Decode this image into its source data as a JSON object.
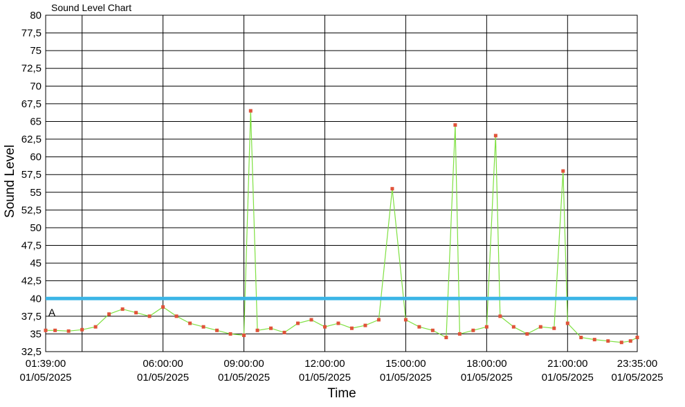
{
  "chart_data": {
    "type": "line",
    "title": "Sound Level Chart",
    "xlabel": "Time",
    "ylabel": "Sound Level",
    "ylim": [
      32.5,
      80
    ],
    "xlim": [
      "2025-05-01T01:39:00",
      "2025-05-01T23:35:00"
    ],
    "yticks": [
      "32,5",
      "35",
      "37,5",
      "40",
      "42,5",
      "45",
      "47,5",
      "50",
      "52,5",
      "55",
      "57,5",
      "60",
      "62,5",
      "65",
      "67,5",
      "70",
      "72,5",
      "75",
      "77,5",
      "80"
    ],
    "xticks": [
      {
        "time": "2025-05-01T01:39:00",
        "line1": "01:39:00",
        "line2": "01/05/2025"
      },
      {
        "time": "2025-05-01T06:00:00",
        "line1": "06:00:00",
        "line2": "01/05/2025"
      },
      {
        "time": "2025-05-01T09:00:00",
        "line1": "09:00:00",
        "line2": "01/05/2025"
      },
      {
        "time": "2025-05-01T12:00:00",
        "line1": "12:00:00",
        "line2": "01/05/2025"
      },
      {
        "time": "2025-05-01T15:00:00",
        "line1": "15:00:00",
        "line2": "01/05/2025"
      },
      {
        "time": "2025-05-01T18:00:00",
        "line1": "18:00:00",
        "line2": "01/05/2025"
      },
      {
        "time": "2025-05-01T21:00:00",
        "line1": "21:00:00",
        "line2": "01/05/2025"
      },
      {
        "time": "2025-05-01T23:35:00",
        "line1": "23:35:00",
        "line2": "01/05/2025"
      }
    ],
    "grid": true,
    "threshold": {
      "value": 40,
      "label": "A",
      "color": "#3bb5e6"
    },
    "colors": {
      "line": "#7ee040",
      "marker": "#e0533a"
    },
    "series": [
      {
        "x": [
          "2025-05-01T01:39:00",
          "2025-05-01T02:00:00",
          "2025-05-01T02:30:00",
          "2025-05-01T03:00:00",
          "2025-05-01T03:30:00",
          "2025-05-01T04:00:00",
          "2025-05-01T04:30:00",
          "2025-05-01T05:00:00",
          "2025-05-01T05:30:00",
          "2025-05-01T06:00:00",
          "2025-05-01T06:30:00",
          "2025-05-01T07:00:00",
          "2025-05-01T07:30:00",
          "2025-05-01T08:00:00",
          "2025-05-01T08:30:00",
          "2025-05-01T09:00:00",
          "2025-05-01T09:15:00",
          "2025-05-01T09:30:00",
          "2025-05-01T10:00:00",
          "2025-05-01T10:30:00",
          "2025-05-01T11:00:00",
          "2025-05-01T11:30:00",
          "2025-05-01T12:00:00",
          "2025-05-01T12:30:00",
          "2025-05-01T13:00:00",
          "2025-05-01T13:30:00",
          "2025-05-01T14:00:00",
          "2025-05-01T14:30:00",
          "2025-05-01T15:00:00",
          "2025-05-01T15:30:00",
          "2025-05-01T16:00:00",
          "2025-05-01T16:30:00",
          "2025-05-01T16:50:00",
          "2025-05-01T17:00:00",
          "2025-05-01T17:30:00",
          "2025-05-01T18:00:00",
          "2025-05-01T18:20:00",
          "2025-05-01T18:30:00",
          "2025-05-01T19:00:00",
          "2025-05-01T19:30:00",
          "2025-05-01T20:00:00",
          "2025-05-01T20:30:00",
          "2025-05-01T20:50:00",
          "2025-05-01T21:00:00",
          "2025-05-01T21:30:00",
          "2025-05-01T22:00:00",
          "2025-05-01T22:30:00",
          "2025-05-01T23:00:00",
          "2025-05-01T23:20:00",
          "2025-05-01T23:35:00"
        ],
        "values": [
          35.5,
          35.5,
          35.4,
          35.6,
          36.0,
          37.8,
          38.5,
          38.0,
          37.5,
          38.8,
          37.5,
          36.5,
          36.0,
          35.5,
          35.0,
          34.8,
          66.5,
          35.5,
          35.8,
          35.2,
          36.5,
          37.0,
          36.0,
          36.5,
          35.8,
          36.2,
          37.0,
          55.5,
          37.0,
          36.0,
          35.5,
          34.5,
          64.5,
          35.0,
          35.5,
          36.0,
          63.0,
          37.5,
          36.0,
          35.0,
          36.0,
          35.8,
          58.0,
          36.5,
          34.5,
          34.2,
          34.0,
          33.8,
          34.0,
          34.5
        ]
      }
    ]
  }
}
